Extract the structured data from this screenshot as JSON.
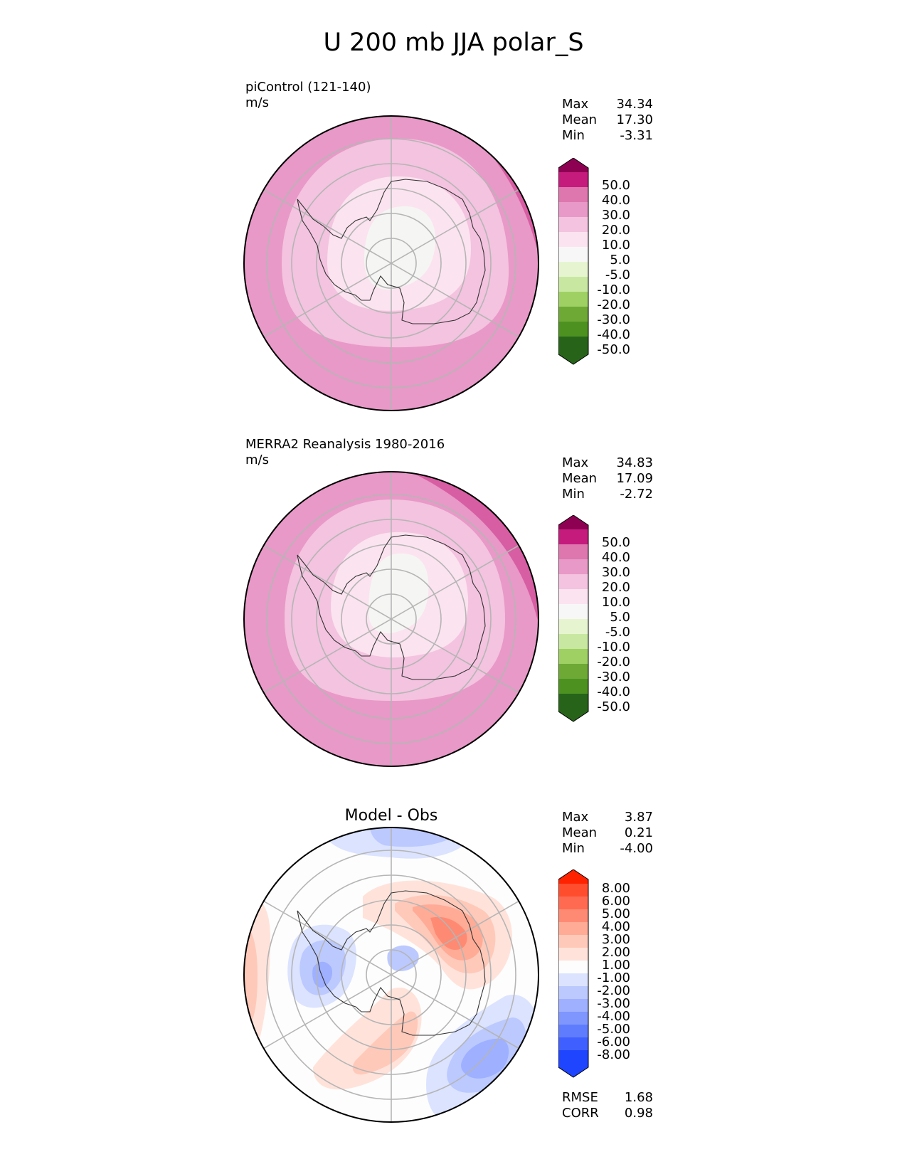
{
  "figure": {
    "title": "U 200 mb JJA polar_S"
  },
  "panels": [
    {
      "title_line1": "piControl (121-140)",
      "units": "m/s",
      "stats": {
        "max_label": "Max",
        "max": "34.34",
        "mean_label": "Mean",
        "mean": "17.30",
        "min_label": "Min",
        "min": "-3.31"
      },
      "colorbar": {
        "ticks": [
          "50.0",
          "40.0",
          "30.0",
          "20.0",
          "10.0",
          "5.0",
          "-5.0",
          "-10.0",
          "-20.0",
          "-30.0",
          "-40.0",
          "-50.0"
        ],
        "colors": [
          "#8e0152",
          "#c51b7d",
          "#de77ae",
          "#f1b6da",
          "#fde0ef",
          "#f7f7f7",
          "#e6f5d0",
          "#b8e186",
          "#7fbc41",
          "#4d9221",
          "#276419",
          "#1b4d14"
        ]
      }
    },
    {
      "title_line1": "MERRA2 Reanalysis 1980-2016",
      "units": "m/s",
      "stats": {
        "max_label": "Max",
        "max": "34.83",
        "mean_label": "Mean",
        "mean": "17.09",
        "min_label": "Min",
        "min": "-2.72"
      },
      "colorbar": {
        "ticks": [
          "50.0",
          "40.0",
          "30.0",
          "20.0",
          "10.0",
          "5.0",
          "-5.0",
          "-10.0",
          "-20.0",
          "-30.0",
          "-40.0",
          "-50.0"
        ]
      }
    },
    {
      "title": "Model - Obs",
      "stats": {
        "max_label": "Max",
        "max": "3.87",
        "mean_label": "Mean",
        "mean": "0.21",
        "min_label": "Min",
        "min": "-4.00"
      },
      "colorbar": {
        "ticks": [
          "8.00",
          "6.00",
          "5.00",
          "4.00",
          "3.00",
          "2.00",
          "1.00",
          "-1.00",
          "-2.00",
          "-3.00",
          "-4.00",
          "-5.00",
          "-6.00",
          "-8.00"
        ],
        "colors": [
          "#ff2200",
          "#ff4d2e",
          "#ff6a50",
          "#ff8a73",
          "#ffab96",
          "#ffc9ba",
          "#ffe3da",
          "#fdfdfd",
          "#dbe3ff",
          "#bcc9ff",
          "#9eb0ff",
          "#7f96ff",
          "#5f7cff",
          "#3f60ff",
          "#1f45ff",
          "#0026ff"
        ]
      },
      "summary": {
        "rmse_label": "RMSE",
        "rmse": "1.68",
        "corr_label": "CORR",
        "corr": "0.98"
      }
    }
  ]
}
